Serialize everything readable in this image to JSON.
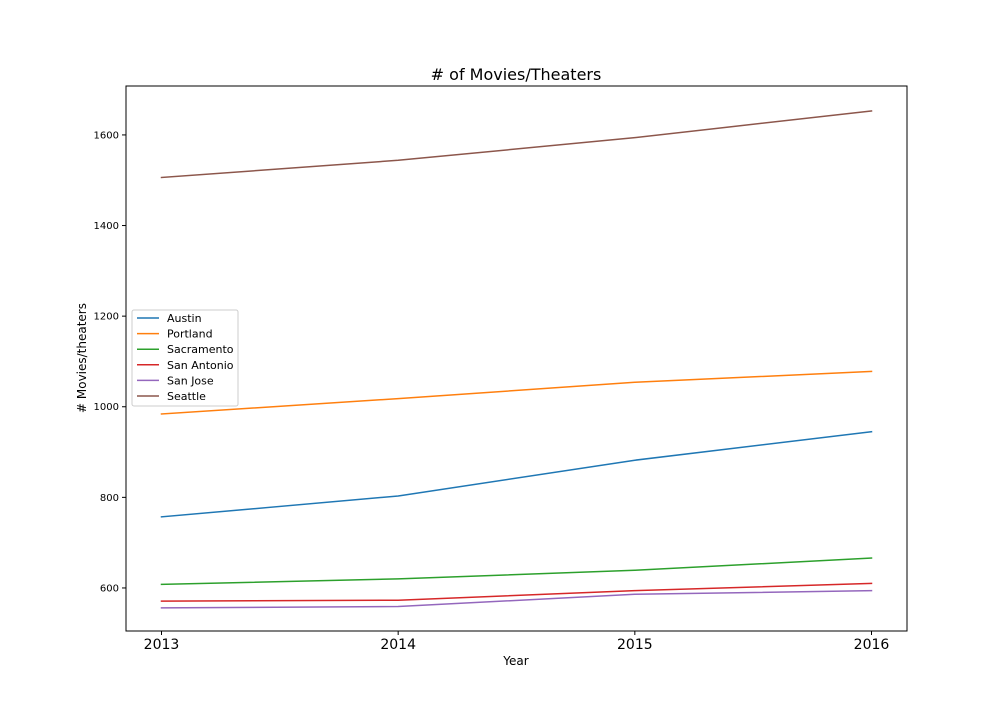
{
  "chart_data": {
    "type": "line",
    "title": "# of Movies/Theaters",
    "xlabel": "Year",
    "ylabel": "# Movies/theaters",
    "x": [
      "2013",
      "2014",
      "2015",
      "2016"
    ],
    "xlim": [
      2012.85,
      2016.15
    ],
    "ylim": [
      505,
      1708
    ],
    "yticks": [
      600,
      800,
      1000,
      1200,
      1400,
      1600
    ],
    "grid": false,
    "legend_position": "center-left",
    "series": [
      {
        "name": "Austin",
        "color": "#1f77b4",
        "values": [
          757,
          803,
          882,
          945
        ]
      },
      {
        "name": "Portland",
        "color": "#ff7f0e",
        "values": [
          984,
          1018,
          1054,
          1078
        ]
      },
      {
        "name": "Sacramento",
        "color": "#2ca02c",
        "values": [
          608,
          620,
          639,
          666
        ]
      },
      {
        "name": "San Antonio",
        "color": "#d62728",
        "values": [
          571,
          573,
          594,
          610
        ]
      },
      {
        "name": "San Jose",
        "color": "#9467bd",
        "values": [
          556,
          559,
          586,
          594
        ]
      },
      {
        "name": "Seattle",
        "color": "#8c564b",
        "values": [
          1506,
          1544,
          1594,
          1653
        ]
      }
    ]
  }
}
